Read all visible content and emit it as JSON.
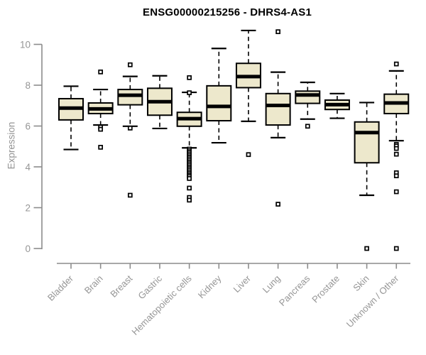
{
  "chart_data": {
    "type": "boxplot",
    "title": "ENSG00000215256 - DHRS4-AS1",
    "xlabel": "",
    "ylabel": "Expression",
    "yticks": [
      0,
      2,
      4,
      6,
      8,
      10
    ],
    "ylim": [
      -0.75,
      10.9
    ],
    "grid": false,
    "legend": "none",
    "categories": [
      "Bladder",
      "Brain",
      "Breast",
      "Gastric",
      "Hematopoietic cells",
      "Kidney",
      "Liver",
      "Lung",
      "Pancreas",
      "Prostate",
      "Skin",
      "Unknown / Other"
    ],
    "boxes": [
      {
        "category": "Bladder",
        "whisker_low": 4.85,
        "q1": 6.3,
        "median": 6.88,
        "q3": 7.34,
        "whisker_high": 7.95,
        "outliers": []
      },
      {
        "category": "Brain",
        "whisker_low": 6.05,
        "q1": 6.61,
        "median": 6.84,
        "q3": 7.13,
        "whisker_high": 7.79,
        "outliers": [
          8.65,
          5.95,
          5.84,
          4.96
        ]
      },
      {
        "category": "Breast",
        "whisker_low": 5.99,
        "q1": 7.04,
        "median": 7.51,
        "q3": 7.79,
        "whisker_high": 8.43,
        "outliers": [
          9.0,
          5.9,
          2.61
        ]
      },
      {
        "category": "Gastric",
        "whisker_low": 5.88,
        "q1": 6.53,
        "median": 7.19,
        "q3": 7.85,
        "whisker_high": 8.46,
        "outliers": []
      },
      {
        "category": "Hematopoietic cells",
        "whisker_low": 4.93,
        "q1": 5.99,
        "median": 6.36,
        "q3": 6.67,
        "whisker_high": 7.65,
        "outliers": [
          8.37,
          7.63,
          4.87,
          4.79,
          4.71,
          4.63,
          4.55,
          4.47,
          4.39,
          4.31,
          4.23,
          4.15,
          4.07,
          3.99,
          3.91,
          3.83,
          3.75,
          3.67,
          3.59,
          3.52,
          3.43,
          2.96,
          2.5,
          2.37
        ]
      },
      {
        "category": "Kidney",
        "whisker_low": 5.18,
        "q1": 6.26,
        "median": 6.96,
        "q3": 7.97,
        "whisker_high": 9.8,
        "outliers": []
      },
      {
        "category": "Liver",
        "whisker_low": 6.23,
        "q1": 7.88,
        "median": 8.42,
        "q3": 9.07,
        "whisker_high": 10.68,
        "outliers": [
          4.6
        ]
      },
      {
        "category": "Lung",
        "whisker_low": 5.43,
        "q1": 6.05,
        "median": 7.01,
        "q3": 7.59,
        "whisker_high": 8.64,
        "outliers": [
          10.62,
          2.17
        ]
      },
      {
        "category": "Pancreas",
        "whisker_low": 6.34,
        "q1": 7.11,
        "median": 7.52,
        "q3": 7.71,
        "whisker_high": 8.14,
        "outliers": [
          5.99
        ]
      },
      {
        "category": "Prostate",
        "whisker_low": 6.38,
        "q1": 6.81,
        "median": 7.05,
        "q3": 7.27,
        "whisker_high": 7.59,
        "outliers": []
      },
      {
        "category": "Skin",
        "whisker_low": 2.61,
        "q1": 4.2,
        "median": 5.68,
        "q3": 6.2,
        "whisker_high": 7.15,
        "outliers": [
          0
        ]
      },
      {
        "category": "Unknown / Other",
        "whisker_low": 5.28,
        "q1": 6.61,
        "median": 7.13,
        "q3": 7.56,
        "whisker_high": 8.7,
        "outliers": [
          9.04,
          5.1,
          5.02,
          4.9,
          4.62,
          3.71,
          3.56,
          2.78,
          0
        ]
      }
    ],
    "colors": {
      "box_fill": "#ede8cc",
      "box_border": "#000000",
      "median": "#000000",
      "whisker": "#000000",
      "outlier_stroke": "#000000",
      "outlier_fill": "#ffffff",
      "axis": "#8c8c8c",
      "tick_label": "#969696",
      "title": "#000000",
      "background": "#ffffff"
    }
  }
}
